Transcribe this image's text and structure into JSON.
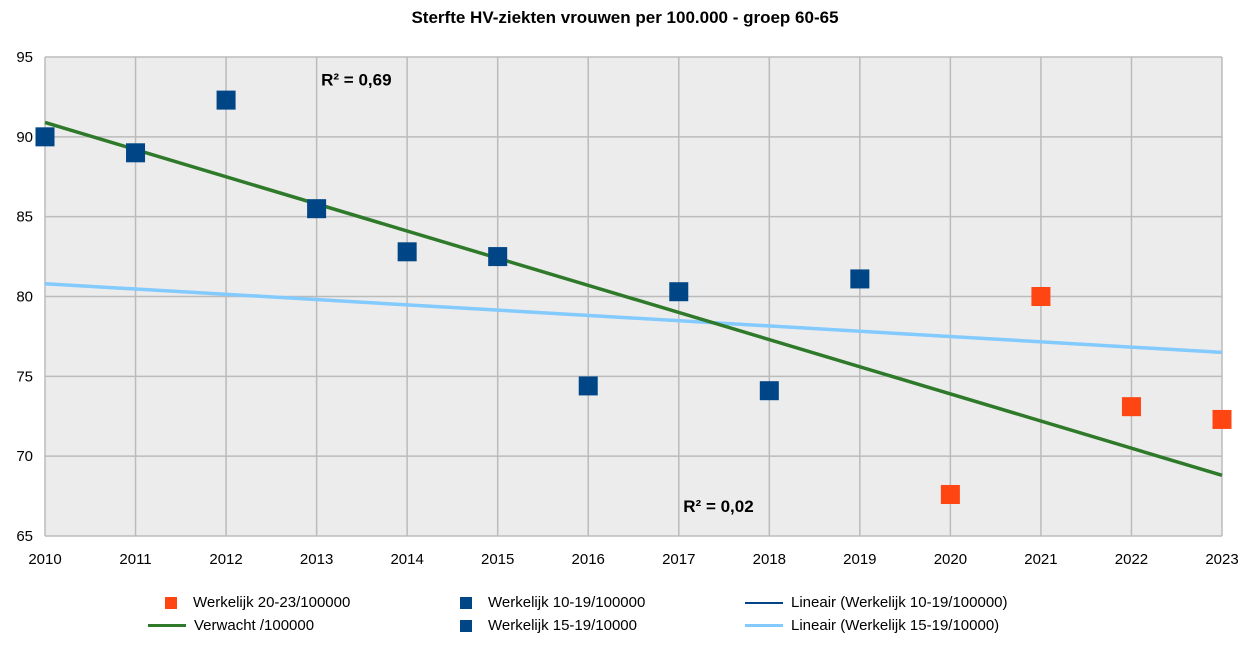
{
  "chart_data": {
    "type": "scatter",
    "title": "Sterfte HV-ziekten vrouwen per 100.000 - groep 60-65",
    "xlabel": "",
    "ylabel": "",
    "xlim": [
      2010,
      2023
    ],
    "ylim": [
      65,
      95
    ],
    "xticks": [
      "2010",
      "2011",
      "2012",
      "2013",
      "2014",
      "2015",
      "2016",
      "2017",
      "2018",
      "2019",
      "2020",
      "2021",
      "2022",
      "2023"
    ],
    "yticks": [
      "65",
      "70",
      "75",
      "80",
      "85",
      "90",
      "95"
    ],
    "grid": true,
    "legend_position": "bottom",
    "series": [
      {
        "name": "Werkelijk 20-23/100000",
        "kind": "scatter",
        "color": "#ff4512",
        "x": [
          2020,
          2021,
          2022,
          2023
        ],
        "y": [
          67.6,
          80.0,
          73.1,
          72.3
        ]
      },
      {
        "name": "Werkelijk 10-19/100000",
        "kind": "scatter",
        "color": "#004586",
        "x": [
          2010,
          2011,
          2012,
          2013,
          2014,
          2015,
          2016,
          2017,
          2018,
          2019
        ],
        "y": [
          90.0,
          89.0,
          92.3,
          85.5,
          82.8,
          82.5,
          74.4,
          80.3,
          74.1,
          81.1
        ]
      },
      {
        "name": "Lineair (Werkelijk 10-19/100000)",
        "kind": "line",
        "color": "#004586",
        "x": [],
        "y": []
      },
      {
        "name": "Verwacht /100000",
        "kind": "line",
        "color": "#2f7a2a",
        "x": [
          2010,
          2023
        ],
        "y": [
          90.9,
          68.8
        ]
      },
      {
        "name": "Werkelijk 15-19/10000",
        "kind": "scatter",
        "color": "#004586",
        "x": [],
        "y": []
      },
      {
        "name": "Lineair (Werkelijk 15-19/10000)",
        "kind": "line",
        "color": "#83caff",
        "x": [
          2010,
          2023
        ],
        "y": [
          80.8,
          76.5
        ]
      }
    ],
    "annotations": [
      {
        "text": "R² = 0,69",
        "x": 2013.05,
        "y": 93.2
      },
      {
        "text": "R² = 0,02",
        "x": 2017.05,
        "y": 66.5
      }
    ]
  },
  "colors": {
    "plot_background": "#ececec",
    "gridline": "#bbbbbb"
  }
}
